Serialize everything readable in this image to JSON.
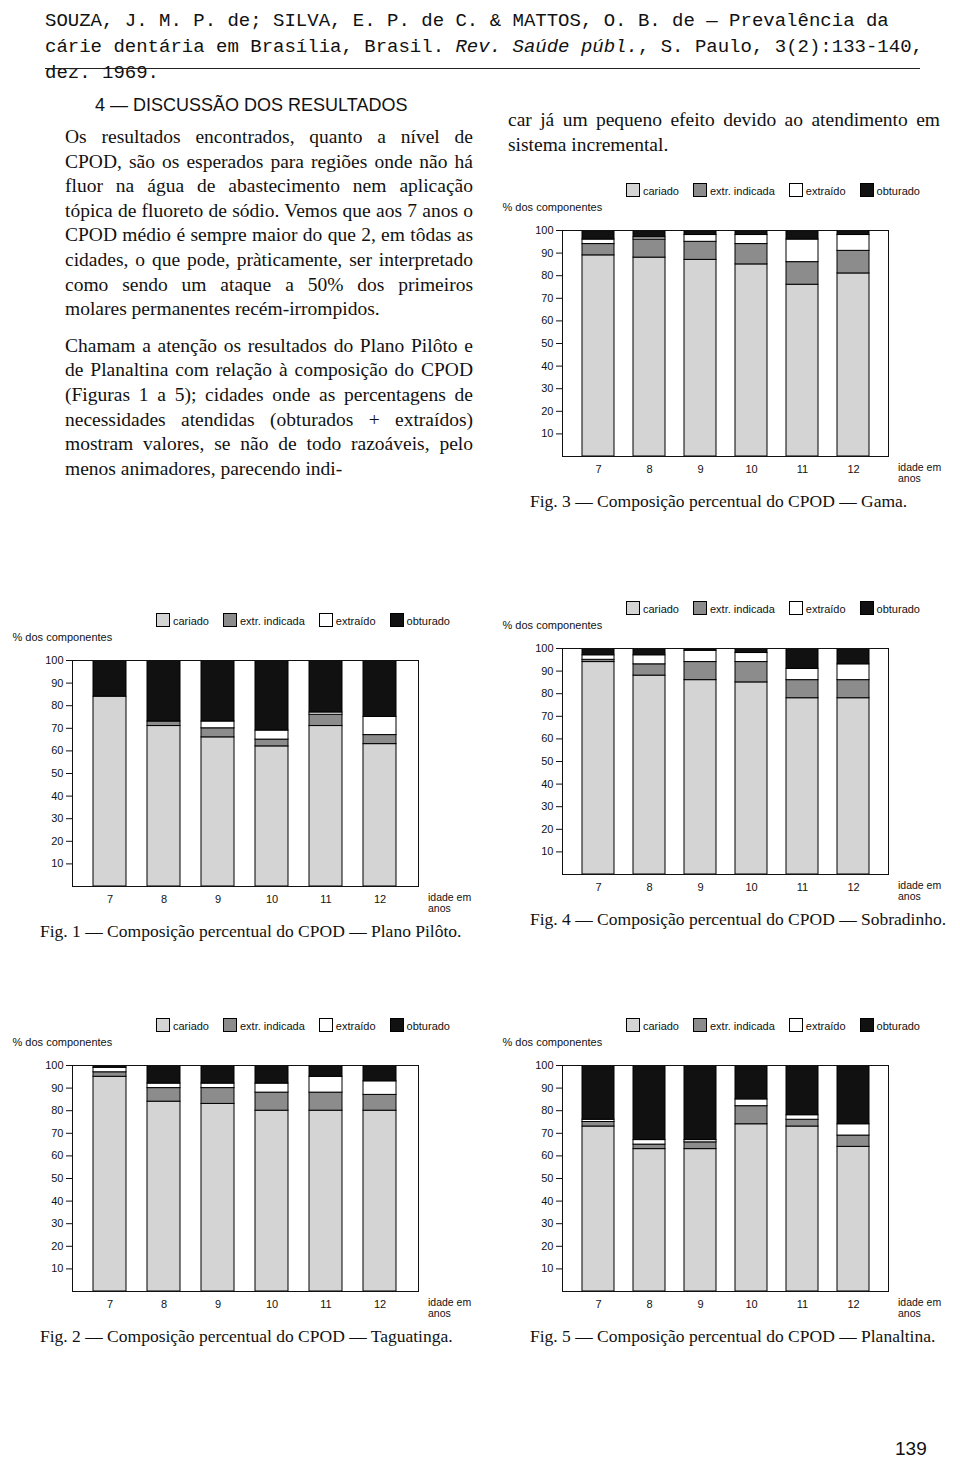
{
  "header": {
    "authors": "SOUZA, J. M. P. de; SILVA, E. P. de C. & MATTOS, O. B. de — Prevalência da cárie dentária em Brasília, Brasil.",
    "journal": "Rev. Saúde públ.",
    "citation": ", S. Paulo, 3(2):133-140, dez. 1969."
  },
  "section_title": "4 — DISCUSSÃO DOS RESULTADOS",
  "paragraphs": [
    "Os resultados encontrados, quanto a nível de CPOD, são os esperados para regiões onde não há fluor na água de abastecimento nem aplicação tópica de fluoreto de sódio. Vemos que aos 7 anos o CPOD médio é sempre maior do que 2, em tôdas as cidades, o que pode, pràticamente, ser interpretado como sendo um ataque a 50% dos primeiros molares permanentes recém-irrompidos.",
    "Chamam a atenção os resultados do Plano Pilôto e de Planaltina com relação à composição do CPOD (Figuras 1 a 5); cidades onde as percentagens de necessidades atendidas (obturados + extraídos) mostram valores, se não de todo razoáveis, pelo menos animadores, parecendo indi-"
  ],
  "continuation": "car já um pequeno efeito devido ao atendimento em sistema incremental.",
  "page_number": "139",
  "chart_data": [
    {
      "type": "bar",
      "stacked": true,
      "legend": "top",
      "title": "Fig. 1 — Composição percentual do CPOD — Plano Pilôto.",
      "ylabel": "% dos componentes",
      "xlabel": "idade em anos",
      "categories": [
        7,
        8,
        9,
        10,
        11,
        12
      ],
      "ylim": [
        0,
        100
      ],
      "yticks": [
        10,
        20,
        30,
        40,
        50,
        60,
        70,
        80,
        90,
        100
      ],
      "series": [
        {
          "name": "cariado",
          "color": "#d4d4d4",
          "values": [
            84,
            71,
            66,
            62,
            71,
            63
          ]
        },
        {
          "name": "extr. indicada",
          "color": "#8c8c8c",
          "values": [
            0,
            2,
            4,
            3,
            5,
            4
          ]
        },
        {
          "name": "extraído",
          "color": "#ffffff",
          "values": [
            0,
            0,
            3,
            4,
            1,
            8
          ]
        },
        {
          "name": "obturado",
          "color": "#111111",
          "values": [
            16,
            27,
            27,
            31,
            23,
            25
          ]
        }
      ]
    },
    {
      "type": "bar",
      "stacked": true,
      "legend": "top",
      "title": "Fig. 2 — Composição percentual do CPOD — Taguatinga.",
      "ylabel": "% dos componentes",
      "xlabel": "idade em anos",
      "categories": [
        7,
        8,
        9,
        10,
        11,
        12
      ],
      "ylim": [
        0,
        100
      ],
      "yticks": [
        10,
        20,
        30,
        40,
        50,
        60,
        70,
        80,
        90,
        100
      ],
      "series": [
        {
          "name": "cariado",
          "color": "#d4d4d4",
          "values": [
            95,
            84,
            83,
            80,
            80,
            80
          ]
        },
        {
          "name": "extr. indicada",
          "color": "#8c8c8c",
          "values": [
            2,
            6,
            7,
            8,
            8,
            7
          ]
        },
        {
          "name": "extraído",
          "color": "#ffffff",
          "values": [
            2,
            2,
            2,
            4,
            7,
            6
          ]
        },
        {
          "name": "obturado",
          "color": "#111111",
          "values": [
            1,
            8,
            8,
            8,
            5,
            7
          ]
        }
      ]
    },
    {
      "type": "bar",
      "stacked": true,
      "legend": "top",
      "title": "Fig. 3 — Composição percentual do CPOD — Gama.",
      "ylabel": "% dos componentes",
      "xlabel": "idade em anos",
      "categories": [
        7,
        8,
        9,
        10,
        11,
        12
      ],
      "ylim": [
        0,
        100
      ],
      "yticks": [
        10,
        20,
        30,
        40,
        50,
        60,
        70,
        80,
        90,
        100
      ],
      "series": [
        {
          "name": "cariado",
          "color": "#d4d4d4",
          "values": [
            89,
            88,
            87,
            85,
            76,
            81
          ]
        },
        {
          "name": "extr. indicada",
          "color": "#8c8c8c",
          "values": [
            5,
            8,
            8,
            9,
            10,
            10
          ]
        },
        {
          "name": "extraído",
          "color": "#ffffff",
          "values": [
            2,
            1,
            3,
            4,
            10,
            7
          ]
        },
        {
          "name": "obturado",
          "color": "#111111",
          "values": [
            4,
            3,
            2,
            2,
            4,
            2
          ]
        }
      ]
    },
    {
      "type": "bar",
      "stacked": true,
      "legend": "top",
      "title": "Fig. 4 — Composição percentual do CPOD — Sobradinho.",
      "ylabel": "% dos componentes",
      "xlabel": "idade em anos",
      "categories": [
        7,
        8,
        9,
        10,
        11,
        12
      ],
      "ylim": [
        0,
        100
      ],
      "yticks": [
        10,
        20,
        30,
        40,
        50,
        60,
        70,
        80,
        90,
        100
      ],
      "series": [
        {
          "name": "cariado",
          "color": "#d4d4d4",
          "values": [
            94,
            88,
            86,
            85,
            78,
            78
          ]
        },
        {
          "name": "extr. indicada",
          "color": "#8c8c8c",
          "values": [
            1,
            5,
            8,
            9,
            8,
            8
          ]
        },
        {
          "name": "extraído",
          "color": "#ffffff",
          "values": [
            2,
            4,
            5,
            4,
            5,
            7
          ]
        },
        {
          "name": "obturado",
          "color": "#111111",
          "values": [
            3,
            3,
            1,
            2,
            9,
            7
          ]
        }
      ]
    },
    {
      "type": "bar",
      "stacked": true,
      "legend": "top",
      "title": "Fig. 5 — Composição percentual do CPOD — Planaltina.",
      "ylabel": "% dos componentes",
      "xlabel": "idade em anos",
      "categories": [
        7,
        8,
        9,
        10,
        11,
        12
      ],
      "ylim": [
        0,
        100
      ],
      "yticks": [
        10,
        20,
        30,
        40,
        50,
        60,
        70,
        80,
        90,
        100
      ],
      "series": [
        {
          "name": "cariado",
          "color": "#d4d4d4",
          "values": [
            73,
            63,
            63,
            74,
            73,
            64
          ]
        },
        {
          "name": "extr. indicada",
          "color": "#8c8c8c",
          "values": [
            2,
            2,
            3,
            8,
            3,
            5
          ]
        },
        {
          "name": "extraído",
          "color": "#ffffff",
          "values": [
            1,
            2,
            1,
            3,
            2,
            5
          ]
        },
        {
          "name": "obturado",
          "color": "#111111",
          "values": [
            24,
            33,
            33,
            15,
            22,
            26
          ]
        }
      ]
    }
  ]
}
